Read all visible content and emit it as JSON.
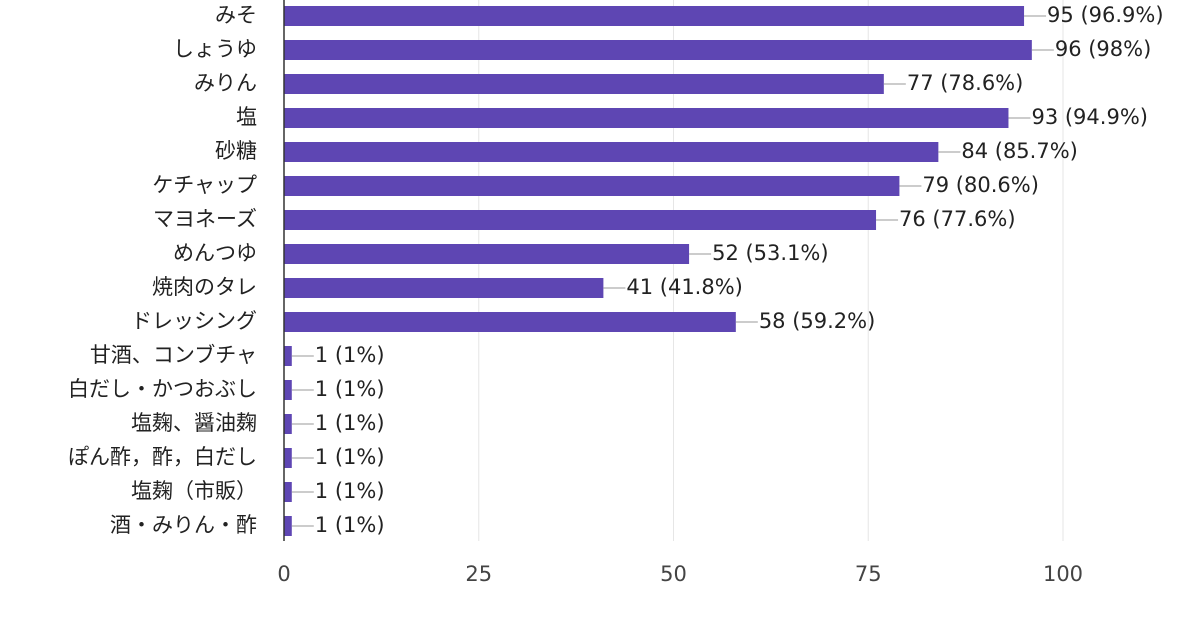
{
  "chart_data": {
    "type": "bar",
    "orientation": "horizontal",
    "categories": [
      "みそ",
      "しょうゆ",
      "みりん",
      "塩",
      "砂糖",
      "ケチャップ",
      "マヨネーズ",
      "めんつゆ",
      "焼肉のタレ",
      "ドレッシング",
      "甘酒、コンブチャ",
      "白だし・かつおぶし",
      "塩麹、醤油麹",
      "ぽん酢，酢，白だし",
      "塩麹（市販）",
      "酒・みりん・酢"
    ],
    "values": [
      95,
      96,
      77,
      93,
      84,
      79,
      76,
      52,
      41,
      58,
      1,
      1,
      1,
      1,
      1,
      1
    ],
    "data_labels": [
      "95 (96.9%)",
      "96 (98%)",
      "77 (78.6%)",
      "93 (94.9%)",
      "84 (85.7%)",
      "79 (80.6%)",
      "76 (77.6%)",
      "52 (53.1%)",
      "41 (41.8%)",
      "58 (59.2%)",
      "1 (1%)",
      "1 (1%)",
      "1 (1%)",
      "1 (1%)",
      "1 (1%)",
      "1 (1%)"
    ],
    "xlim": [
      0,
      100
    ],
    "xticks": [
      0,
      25,
      50,
      75,
      100
    ],
    "xtick_labels": [
      "0",
      "25",
      "50",
      "75",
      "100"
    ],
    "grid": true,
    "bar_color": "#5e46b3",
    "grid_color": "#e6e6e6",
    "axis_color": "#333333",
    "title": "",
    "xlabel": "",
    "ylabel": ""
  }
}
